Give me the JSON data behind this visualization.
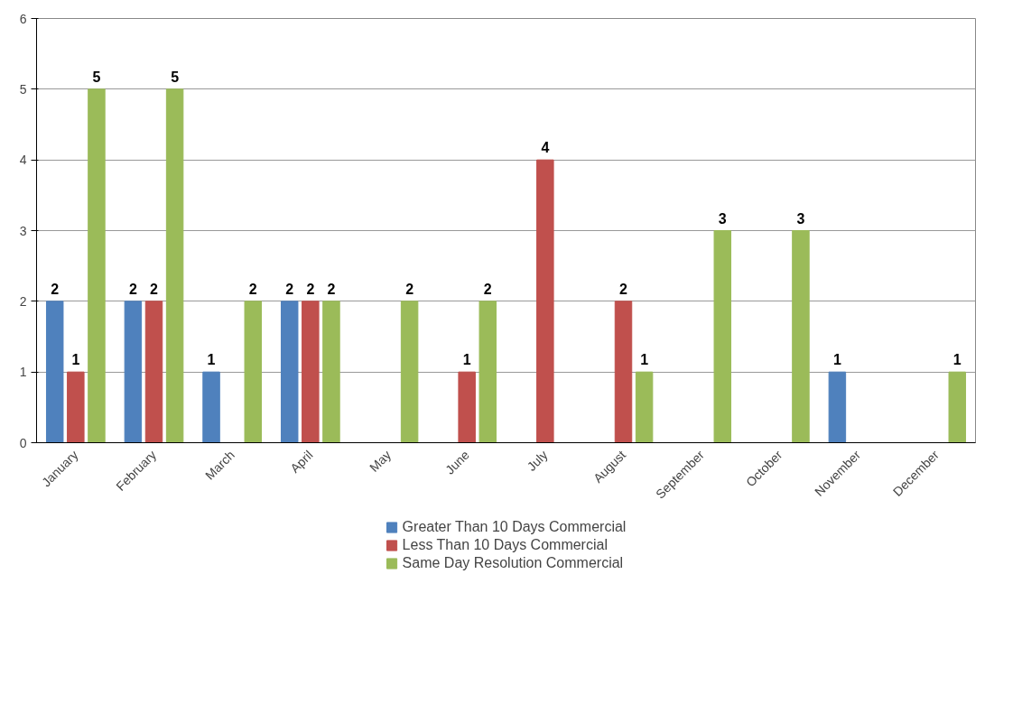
{
  "chart_data": {
    "type": "bar",
    "categories": [
      "January",
      "February",
      "March",
      "April",
      "May",
      "June",
      "July",
      "August",
      "September",
      "October",
      "November",
      "December"
    ],
    "series": [
      {
        "name": "Greater Than 10 Days Commercial",
        "color": "#4f81bd",
        "values": [
          2,
          2,
          1,
          2,
          null,
          null,
          null,
          null,
          null,
          null,
          1,
          null
        ]
      },
      {
        "name": "Less Than 10 Days Commercial",
        "color": "#c0504d",
        "values": [
          1,
          2,
          null,
          2,
          null,
          1,
          4,
          2,
          null,
          null,
          null,
          null
        ]
      },
      {
        "name": "Same Day Resolution Commercial",
        "color": "#9bbb59",
        "values": [
          5,
          5,
          2,
          2,
          2,
          2,
          null,
          1,
          3,
          3,
          null,
          1
        ]
      }
    ],
    "ylim": [
      0,
      6
    ],
    "yticks": [
      0,
      1,
      2,
      3,
      4,
      5,
      6
    ],
    "grid": "y",
    "legend": "bottom",
    "data_labels": true
  }
}
